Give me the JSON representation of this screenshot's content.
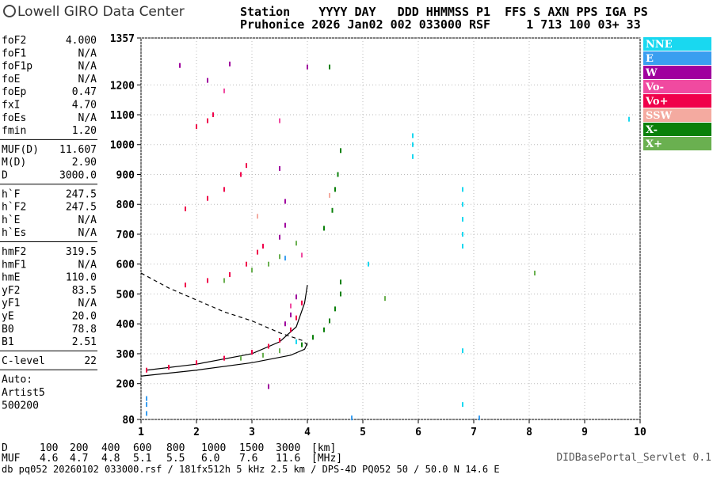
{
  "header": {
    "logo": "Lowell GIRO Data Center",
    "line1": "Station    YYYY DAY   DDD HHMMSS P1  FFS S AXN PPS IGA PS",
    "line2": "Pruhonice 2026 Jan02 002 033000 RSF     1 713 100 03+ 33"
  },
  "parameters": [
    [
      [
        "foF2",
        "4.000"
      ],
      [
        "foF1",
        "N/A"
      ],
      [
        "foF1p",
        "N/A"
      ],
      [
        "foE",
        "N/A"
      ],
      [
        "foEp",
        "0.47"
      ],
      [
        "fxI",
        "4.70"
      ],
      [
        "foEs",
        "N/A"
      ],
      [
        "fmin",
        "1.20"
      ]
    ],
    [
      [
        "MUF(D)",
        "11.607"
      ],
      [
        "M(D)",
        "2.90"
      ],
      [
        "D",
        "3000.0"
      ]
    ],
    [
      [
        "h`F",
        "247.5"
      ],
      [
        "h`F2",
        "247.5"
      ],
      [
        "h`E",
        "N/A"
      ],
      [
        "h`Es",
        "N/A"
      ]
    ],
    [
      [
        "hmF2",
        "319.5"
      ],
      [
        "hmF1",
        "N/A"
      ],
      [
        "hmE",
        "110.0"
      ],
      [
        "yF2",
        "83.5"
      ],
      [
        "yF1",
        "N/A"
      ],
      [
        "yE",
        "20.0"
      ],
      [
        "B0",
        "78.8"
      ],
      [
        "B1",
        "2.51"
      ]
    ],
    [
      [
        "C-level",
        "22"
      ]
    ]
  ],
  "auto": [
    "Auto:",
    "Artist5",
    "500200"
  ],
  "scale_rows": [
    {
      "label": "D",
      "values": [
        "100",
        "200",
        "400",
        "600",
        "800",
        "1000",
        "1500",
        "3000"
      ],
      "unit": "[km]"
    },
    {
      "label": "MUF",
      "values": [
        "4.6",
        "4.7",
        "4.8",
        "5.1",
        "5.5",
        "6.0",
        "7.6",
        "11.6"
      ],
      "unit": "[MHz]"
    }
  ],
  "footer": {
    "left": "db pq052 20260102 033000.rsf / 181fx512h 5 kHz 2.5 km / DPS-4D PQ052 50 / 50.0 N 14.6 E",
    "right": "DIDBasePortal_Servlet 0.1"
  },
  "chart_data": {
    "type": "scatter",
    "xlim": [
      1,
      10
    ],
    "xticks": [
      1,
      2,
      3,
      4,
      5,
      6,
      7,
      8,
      9,
      10
    ],
    "ylim": [
      80,
      1357
    ],
    "yticks": [
      80,
      200,
      300,
      400,
      500,
      600,
      700,
      800,
      900,
      1000,
      1100,
      1200,
      1357
    ],
    "grid": true,
    "series": [
      {
        "name": "NNE",
        "color": "#19d8f0",
        "x": [
          5.9,
          5.9,
          5.9,
          6.8,
          6.8,
          6.8,
          6.8,
          6.8,
          6.8,
          6.8,
          3.8,
          9.8,
          5.1
        ],
        "y": [
          960,
          1000,
          1030,
          660,
          700,
          750,
          800,
          850,
          130,
          310,
          340,
          1085,
          600
        ]
      },
      {
        "name": "E",
        "color": "#3a9ef0",
        "x": [
          1.1,
          1.1,
          1.1,
          4.8,
          7.1,
          3.6
        ],
        "y": [
          100,
          130,
          150,
          85,
          85,
          620
        ]
      },
      {
        "name": "W",
        "color": "#a0009e",
        "x": [
          3.6,
          3.7,
          3.8,
          3.5,
          3.6,
          3.5,
          3.6,
          2.2,
          1.7,
          2.6,
          3.3,
          4.0
        ],
        "y": [
          400,
          430,
          490,
          690,
          730,
          920,
          810,
          1215,
          1265,
          1270,
          190,
          1260
        ]
      },
      {
        "name": "Vo-",
        "color": "#f04aa0",
        "x": [
          2.5,
          3.5,
          3.9,
          3.7
        ],
        "y": [
          1180,
          1080,
          630,
          460
        ]
      },
      {
        "name": "Vo+",
        "color": "#f0004a",
        "x": [
          1.1,
          1.5,
          2,
          2.5,
          3,
          3.3,
          3.5,
          3.7,
          3.8,
          3.9,
          1.8,
          2.2,
          2.6,
          2.9,
          3.1,
          3.2,
          1.8,
          2.2,
          2.5,
          2.8,
          2.9,
          2,
          2.2,
          2.3
        ],
        "y": [
          245,
          255,
          270,
          285,
          305,
          325,
          345,
          380,
          420,
          470,
          530,
          545,
          565,
          600,
          640,
          660,
          785,
          820,
          850,
          900,
          930,
          1060,
          1080,
          1100
        ]
      },
      {
        "name": "SSW",
        "color": "#f4aaa0",
        "x": [
          4.4,
          3.1
        ],
        "y": [
          830,
          760
        ]
      },
      {
        "name": "X-",
        "color": "#0a800a",
        "x": [
          3.9,
          4.1,
          4.3,
          4.4,
          4.5,
          4.6,
          4.6,
          4.45,
          4.5,
          4.55,
          4.6,
          4.4,
          4.3
        ],
        "y": [
          330,
          355,
          380,
          410,
          450,
          500,
          540,
          780,
          850,
          900,
          980,
          1260,
          720
        ]
      },
      {
        "name": "X+",
        "color": "#6ab050",
        "x": [
          2.8,
          3.2,
          3.5,
          3.0,
          3.3,
          3.5,
          3.8,
          2.5,
          8.1,
          5.4
        ],
        "y": [
          285,
          295,
          310,
          580,
          600,
          625,
          670,
          545,
          570,
          485
        ]
      }
    ],
    "lines": [
      {
        "dash": false,
        "x": [
          1.1,
          2,
          3,
          3.5,
          3.8,
          3.95,
          4.0
        ],
        "y": [
          245,
          265,
          300,
          340,
          390,
          470,
          530
        ]
      },
      {
        "dash": false,
        "x": [
          1,
          2,
          3,
          3.7,
          3.95,
          4.0
        ],
        "y": [
          225,
          245,
          270,
          295,
          315,
          335
        ]
      },
      {
        "dash": true,
        "x": [
          1,
          1.5,
          2,
          2.5,
          3,
          3.5,
          3.9,
          4.0
        ],
        "y": [
          570,
          520,
          480,
          440,
          410,
          370,
          345,
          330
        ]
      }
    ]
  }
}
